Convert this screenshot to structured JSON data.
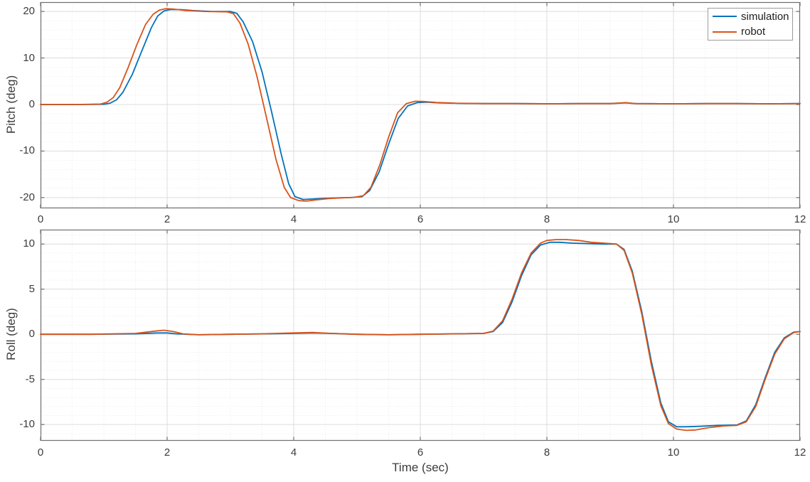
{
  "figure": {
    "background": "#ffffff",
    "axis_color": "#6f6f6f",
    "label_color": "#3c3c3c",
    "grid_color": "#dcdcdc",
    "minor_grid_color": "#e9e9e9"
  },
  "legend": {
    "position": "top-right",
    "items": [
      {
        "label": "simulation",
        "color": "#0072BD"
      },
      {
        "label": "robot",
        "color": "#D95319"
      }
    ]
  },
  "chart_data": [
    {
      "type": "line",
      "title": "",
      "xlabel": "",
      "ylabel": "Pitch (deg)",
      "xlim": [
        0,
        12
      ],
      "ylim": [
        -22.3,
        22.0
      ],
      "xticks": [
        0,
        2,
        4,
        6,
        8,
        10,
        12
      ],
      "yticks": [
        -20,
        -10,
        0,
        10,
        20
      ],
      "x_minor_step": 0.5,
      "y_minor_step": 2,
      "grid": true,
      "minor_grid": true,
      "legend_position": "top-right",
      "series": [
        {
          "name": "simulation",
          "color": "#0072BD",
          "x": [
            0,
            0.6,
            1.0,
            1.1,
            1.2,
            1.3,
            1.45,
            1.6,
            1.75,
            1.85,
            1.95,
            2.05,
            2.2,
            2.4,
            2.7,
            3.0,
            3.1,
            3.2,
            3.35,
            3.5,
            3.65,
            3.8,
            3.92,
            4.02,
            4.15,
            4.3,
            4.5,
            4.7,
            4.9,
            5.08,
            5.2,
            5.35,
            5.5,
            5.65,
            5.8,
            5.95,
            6.1,
            6.3,
            6.6,
            7.0,
            7.5,
            8.0,
            8.5,
            9.0,
            9.25,
            9.4,
            10.0,
            10.5,
            11.0,
            11.5,
            12.0
          ],
          "y": [
            0,
            0,
            0.05,
            0.3,
            1.0,
            2.6,
            6.5,
            11.5,
            16.5,
            19.0,
            20.1,
            20.4,
            20.4,
            20.2,
            20.0,
            20.0,
            19.6,
            17.8,
            13.5,
            7.0,
            -1.5,
            -10.5,
            -17.0,
            -19.8,
            -20.4,
            -20.3,
            -20.15,
            -20.05,
            -20.0,
            -19.8,
            -18.5,
            -14.5,
            -8.5,
            -3.0,
            -0.3,
            0.4,
            0.5,
            0.35,
            0.25,
            0.2,
            0.2,
            0.15,
            0.2,
            0.2,
            0.35,
            0.2,
            0.15,
            0.2,
            0.2,
            0.15,
            0.2
          ]
        },
        {
          "name": "robot",
          "color": "#D95319",
          "x": [
            0,
            0.6,
            0.95,
            1.05,
            1.15,
            1.25,
            1.38,
            1.52,
            1.66,
            1.78,
            1.88,
            1.98,
            2.1,
            2.3,
            2.6,
            2.95,
            3.05,
            3.15,
            3.28,
            3.42,
            3.57,
            3.72,
            3.85,
            3.95,
            4.08,
            4.2,
            4.35,
            4.55,
            4.75,
            4.95,
            5.1,
            5.22,
            5.36,
            5.5,
            5.64,
            5.78,
            5.92,
            6.06,
            6.25,
            6.55,
            7.0,
            7.5,
            8.0,
            8.5,
            9.0,
            9.25,
            9.4,
            10.0,
            10.5,
            11.0,
            11.5,
            12.0
          ],
          "y": [
            0,
            0,
            0.1,
            0.5,
            1.5,
            3.6,
            7.8,
            12.8,
            17.2,
            19.4,
            20.3,
            20.6,
            20.5,
            20.2,
            20.0,
            19.9,
            19.5,
            17.5,
            13.0,
            6.0,
            -2.8,
            -11.8,
            -17.8,
            -20.0,
            -20.65,
            -20.75,
            -20.5,
            -20.2,
            -20.05,
            -19.95,
            -19.6,
            -17.8,
            -13.0,
            -7.0,
            -1.8,
            0.2,
            0.7,
            0.65,
            0.45,
            0.3,
            0.2,
            0.2,
            0.15,
            0.2,
            0.2,
            0.4,
            0.2,
            0.15,
            0.2,
            0.2,
            0.15,
            0.2
          ]
        }
      ]
    },
    {
      "type": "line",
      "title": "",
      "xlabel": "Time (sec)",
      "ylabel": "Roll (deg)",
      "xlim": [
        0,
        12
      ],
      "ylim": [
        -11.8,
        11.6
      ],
      "xticks": [
        0,
        2,
        4,
        6,
        8,
        10,
        12
      ],
      "yticks": [
        -10,
        -5,
        0,
        5,
        10
      ],
      "x_minor_step": 0.5,
      "y_minor_step": 1,
      "grid": true,
      "minor_grid": true,
      "series": [
        {
          "name": "simulation",
          "color": "#0072BD",
          "x": [
            0,
            0.8,
            1.5,
            1.85,
            2.0,
            2.15,
            2.5,
            3.0,
            3.5,
            4.0,
            4.3,
            4.6,
            5.0,
            5.5,
            6.0,
            6.5,
            7.0,
            7.15,
            7.3,
            7.45,
            7.6,
            7.75,
            7.9,
            8.05,
            8.2,
            8.4,
            8.65,
            8.9,
            9.1,
            9.22,
            9.35,
            9.5,
            9.65,
            9.8,
            9.92,
            10.05,
            10.2,
            10.4,
            10.7,
            11.0,
            11.15,
            11.3,
            11.45,
            11.6,
            11.75,
            11.9,
            12.0
          ],
          "y": [
            0,
            0,
            0.05,
            0.15,
            0.15,
            0.05,
            -0.05,
            0,
            0.05,
            0.1,
            0.15,
            0.1,
            0,
            -0.05,
            0,
            0.05,
            0.1,
            0.3,
            1.3,
            3.6,
            6.5,
            8.8,
            9.9,
            10.2,
            10.2,
            10.1,
            10.05,
            10.0,
            10.0,
            9.4,
            7.0,
            2.5,
            -3.0,
            -7.6,
            -9.7,
            -10.25,
            -10.25,
            -10.2,
            -10.1,
            -10.05,
            -9.6,
            -7.8,
            -4.8,
            -2.0,
            -0.4,
            0.25,
            0.3
          ]
        },
        {
          "name": "robot",
          "color": "#D95319",
          "x": [
            0,
            0.8,
            1.5,
            1.8,
            1.95,
            2.1,
            2.25,
            2.5,
            3.0,
            3.5,
            4.0,
            4.3,
            4.6,
            5.0,
            5.5,
            6.0,
            6.5,
            7.0,
            7.15,
            7.3,
            7.45,
            7.6,
            7.75,
            7.9,
            8.0,
            8.15,
            8.3,
            8.5,
            8.7,
            8.9,
            9.1,
            9.22,
            9.35,
            9.5,
            9.65,
            9.8,
            9.92,
            10.05,
            10.2,
            10.35,
            10.55,
            10.8,
            11.0,
            11.15,
            11.3,
            11.45,
            11.6,
            11.75,
            11.9,
            12.0
          ],
          "y": [
            0,
            0,
            0.1,
            0.35,
            0.45,
            0.3,
            0.05,
            -0.05,
            0,
            0.05,
            0.15,
            0.2,
            0.1,
            0,
            -0.05,
            0,
            0.05,
            0.1,
            0.35,
            1.5,
            3.9,
            6.8,
            9.0,
            10.1,
            10.4,
            10.5,
            10.5,
            10.4,
            10.2,
            10.1,
            10.0,
            9.3,
            6.8,
            2.2,
            -3.4,
            -7.9,
            -9.9,
            -10.5,
            -10.65,
            -10.6,
            -10.35,
            -10.15,
            -10.1,
            -9.7,
            -8.0,
            -5.0,
            -2.2,
            -0.5,
            0.2,
            0.3
          ]
        }
      ]
    }
  ]
}
